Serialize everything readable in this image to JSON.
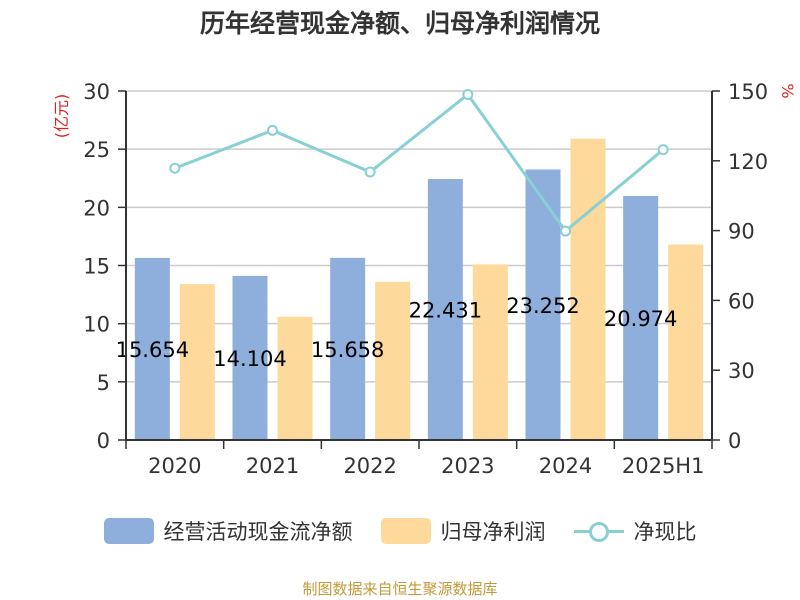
{
  "title": "历年经营现金净额、归母净利润情况",
  "source": "制图数据来自恒生聚源数据库",
  "colors": {
    "operating_cash": "#8eaedb",
    "net_profit": "#fdd99b",
    "ratio": "#88d0d4",
    "left_unit": "#e02020",
    "source": "#c49a38"
  },
  "chart_data": {
    "type": "bar",
    "categories": [
      "2020",
      "2021",
      "2022",
      "2023",
      "2024",
      "2025H1"
    ],
    "series": [
      {
        "name": "经营活动现金流净额",
        "type": "bar",
        "axis": "left",
        "values": [
          15.654,
          14.104,
          15.658,
          22.431,
          23.252,
          20.974
        ],
        "labels": [
          "15.654",
          "14.104",
          "15.658",
          "22.431",
          "23.252",
          "20.974"
        ]
      },
      {
        "name": "归母净利润",
        "type": "bar",
        "axis": "left",
        "values": [
          13.4,
          10.6,
          13.6,
          15.1,
          25.9,
          16.8
        ]
      },
      {
        "name": "净现比",
        "type": "line",
        "axis": "right",
        "values": [
          116.8,
          133.1,
          115.2,
          148.5,
          89.8,
          124.8
        ]
      }
    ],
    "y_left": {
      "label": "(亿元)",
      "min": 0,
      "max": 30,
      "ticks": [
        0,
        5,
        10,
        15,
        20,
        25,
        30
      ]
    },
    "y_right": {
      "label": "%",
      "min": 0,
      "max": 150,
      "ticks": [
        0,
        30,
        60,
        90,
        120,
        150
      ]
    },
    "grid": true,
    "legend_position": "bottom"
  }
}
